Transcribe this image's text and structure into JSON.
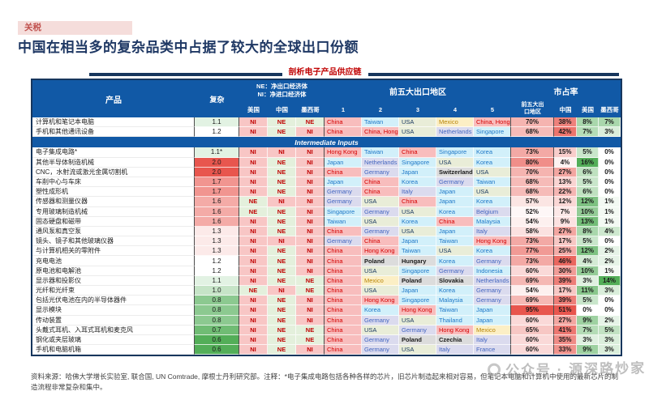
{
  "tariff_badge": "关税",
  "title": "中国在相当多的复杂品类中占据了较大的全球出口份额",
  "table": {
    "caption": "剖析电子产品供应链",
    "header": {
      "product": "产品",
      "complexity": "复杂",
      "legend1": "NE：净出口经济体",
      "legend2": "NI：净进口经济体",
      "net_cols": [
        "美国",
        "中国",
        "墨西哥"
      ],
      "top5_title": "前五大出口地区",
      "top5_cols": [
        "1",
        "2",
        "3",
        "4",
        "5"
      ],
      "share_title": "市占率",
      "share_cols": [
        "前五大出\n口地区",
        "中国",
        "美国",
        "墨西哥"
      ]
    },
    "section_label": "Intermediate Inputs",
    "rows": [
      {
        "sec": "final",
        "p": "计算机和笔记本电脑",
        "c": "1.1",
        "us": "NI",
        "cn": "NE",
        "mx": "NE",
        "e": [
          "China",
          "Taiwan",
          "USA",
          "Mexico",
          "China, Hong Kong"
        ],
        "s": [
          70,
          38,
          8,
          7
        ]
      },
      {
        "sec": "final",
        "p": "手机和其他通讯设备",
        "c": "1.2",
        "us": "NI",
        "cn": "NE",
        "mx": "NI",
        "e": [
          "China",
          "China, Hong Kong",
          "USA",
          "Netherlands",
          "Singapore"
        ],
        "s": [
          68,
          42,
          7,
          3
        ]
      },
      {
        "sec": "int",
        "p": "电子集成电路*",
        "c": "1.1*",
        "us": "NI",
        "cn": "NI",
        "mx": "NI",
        "e": [
          "Hong Kong",
          "Taiwan",
          "China",
          "Singapore",
          "Korea"
        ],
        "s": [
          73,
          15,
          5,
          0
        ]
      },
      {
        "sec": "int",
        "p": "其他半导体制造机械",
        "c": "2.0",
        "us": "NI",
        "cn": "NE",
        "mx": "NI",
        "e": [
          "Japan",
          "Netherlands",
          "Singapore",
          "USA",
          "Korea"
        ],
        "s": [
          80,
          4,
          16,
          0
        ]
      },
      {
        "sec": "int",
        "p": "CNC，水射流或激光金属切割机",
        "c": "2.0",
        "us": "NI",
        "cn": "NE",
        "mx": "NI",
        "e": [
          "China",
          "Germany",
          "Japan",
          "Switzerland",
          "USA"
        ],
        "s": [
          70,
          27,
          6,
          0
        ]
      },
      {
        "sec": "int",
        "p": "车削中心与车床",
        "c": "1.7",
        "us": "NI",
        "cn": "NE",
        "mx": "NI",
        "e": [
          "Japan",
          "China",
          "Korea",
          "Germany",
          "Taiwan"
        ],
        "s": [
          68,
          13,
          5,
          0
        ]
      },
      {
        "sec": "int",
        "p": "塑性成形机",
        "c": "1.7",
        "us": "NI",
        "cn": "NE",
        "mx": "NI",
        "e": [
          "Germany",
          "China",
          "Italy",
          "Japan",
          "USA"
        ],
        "s": [
          68,
          22,
          6,
          0
        ]
      },
      {
        "sec": "int",
        "p": "传感器和测量仪器",
        "c": "1.6",
        "us": "NE",
        "cn": "NI",
        "mx": "NI",
        "e": [
          "Germany",
          "USA",
          "China",
          "Japan",
          "Korea"
        ],
        "s": [
          57,
          12,
          12,
          1
        ]
      },
      {
        "sec": "int",
        "p": "专用玻璃制造机械",
        "c": "1.6",
        "us": "NE",
        "cn": "NE",
        "mx": "NI",
        "e": [
          "Singapore",
          "Germany",
          "USA",
          "Korea",
          "Belgium"
        ],
        "s": [
          52,
          7,
          10,
          1
        ]
      },
      {
        "sec": "int",
        "p": "固态硬盘和磁带",
        "c": "1.6",
        "us": "NI",
        "cn": "NE",
        "mx": "NI",
        "e": [
          "Taiwan",
          "USA",
          "Korea",
          "China",
          "Malaysia"
        ],
        "s": [
          54,
          9,
          13,
          1
        ]
      },
      {
        "sec": "int",
        "p": "通风泵和真空泵",
        "c": "1.3",
        "us": "NI",
        "cn": "NE",
        "mx": "NI",
        "e": [
          "China",
          "Germany",
          "USA",
          "Japan",
          "Italy"
        ],
        "s": [
          58,
          27,
          8,
          4
        ]
      },
      {
        "sec": "int",
        "p": "镜头、镜子和其他玻璃仪器",
        "c": "1.3",
        "us": "NI",
        "cn": "NI",
        "mx": "NI",
        "e": [
          "Germany",
          "China",
          "Japan",
          "Taiwan",
          "Hong Kong"
        ],
        "s": [
          73,
          17,
          5,
          0
        ]
      },
      {
        "sec": "int",
        "p": "与计算机相关的零附件",
        "c": "1.3",
        "us": "NI",
        "cn": "NE",
        "mx": "NI",
        "e": [
          "China",
          "Hong Kong",
          "Taiwan",
          "USA",
          "Korea"
        ],
        "s": [
          77,
          25,
          12,
          2
        ]
      },
      {
        "sec": "int",
        "p": "充电电池",
        "c": "1.2",
        "us": "NI",
        "cn": "NE",
        "mx": "NI",
        "e": [
          "China",
          "Poland",
          "Hungary",
          "Korea",
          "Germany"
        ],
        "s": [
          73,
          46,
          4,
          2
        ]
      },
      {
        "sec": "int",
        "p": "原电池和电解池",
        "c": "1.2",
        "us": "NI",
        "cn": "NE",
        "mx": "NI",
        "e": [
          "China",
          "USA",
          "Singapore",
          "Germany",
          "Indonesia"
        ],
        "s": [
          60,
          30,
          10,
          1
        ]
      },
      {
        "sec": "int",
        "p": "显示器和投影仪",
        "c": "1.1",
        "us": "NI",
        "cn": "NE",
        "mx": "NE",
        "e": [
          "China",
          "Mexico",
          "Poland",
          "Slovakia",
          "Netherlands"
        ],
        "s": [
          69,
          39,
          3,
          14
        ]
      },
      {
        "sec": "int",
        "p": "光纤和光纤束",
        "c": "1.0",
        "us": "NE",
        "cn": "NI",
        "mx": "NE",
        "e": [
          "China",
          "USA",
          "Japan",
          "Korea",
          "Germany"
        ],
        "s": [
          54,
          17,
          11,
          3
        ]
      },
      {
        "sec": "int",
        "p": "包括光伏电池在内的半导体器件",
        "c": "0.8",
        "us": "NI",
        "cn": "NE",
        "mx": "NI",
        "e": [
          "China",
          "Hong Kong",
          "Singapore",
          "Malaysia",
          "Germany"
        ],
        "s": [
          69,
          39,
          5,
          0
        ]
      },
      {
        "sec": "int",
        "p": "显示模块",
        "c": "0.8",
        "us": "NI",
        "cn": "NE",
        "mx": "NI",
        "e": [
          "China",
          "Korea",
          "Hong Kong",
          "Taiwan",
          "Japan"
        ],
        "s": [
          95,
          51,
          0,
          0
        ]
      },
      {
        "sec": "int",
        "p": "传动装置",
        "c": "0.8",
        "us": "NI",
        "cn": "NE",
        "mx": "NI",
        "e": [
          "China",
          "Germany",
          "USA",
          "Thailand",
          "Japan"
        ],
        "s": [
          60,
          27,
          9,
          2
        ]
      },
      {
        "sec": "int",
        "p": "头戴式耳机、入耳式耳机和麦克风",
        "c": "0.7",
        "us": "NI",
        "cn": "NE",
        "mx": "NE",
        "e": [
          "China",
          "USA",
          "Germany",
          "Hong Kong",
          "Mexico"
        ],
        "s": [
          65,
          41,
          7,
          5
        ]
      },
      {
        "sec": "int",
        "p": "钢化或夹层玻璃",
        "c": "0.6",
        "us": "NI",
        "cn": "NE",
        "mx": "NE",
        "e": [
          "China",
          "Germany",
          "Poland",
          "Czechia",
          "Italy"
        ],
        "s": [
          60,
          35,
          3,
          3
        ]
      },
      {
        "sec": "int",
        "p": "手机和电脑机箱",
        "c": "0.6",
        "us": "NI",
        "cn": "NE",
        "mx": "NI",
        "e": [
          "China",
          "Germany",
          "USA",
          "Italy",
          "France"
        ],
        "s": [
          60,
          33,
          9,
          3
        ]
      }
    ]
  },
  "footer": {
    "text": "资料来源：哈佛大学增长实验室, 联合国, UN Comtrade, 摩根士丹利研究部。注释：*电子集成电路包括各种各样的芯片，旧芯片制造起来相对容易，但笔记本电脑和计算机中使用的最新芯片的制造流程非常复杂和集中。"
  },
  "watermark": {
    "text": "公众号 · 源深路炒家"
  },
  "colors": {
    "header_blue": "#1159A6",
    "title_navy": "#1F3864",
    "caption_red": "#C00000",
    "badge_bg": "#F5DDDB",
    "badge_text": "#C0504D",
    "net_importer_bg": "#F8C6C5",
    "net_exporter_bg": "#E4F0DC",
    "scale_red_max": "#E8564E",
    "scale_green_max": "#53AE58"
  }
}
